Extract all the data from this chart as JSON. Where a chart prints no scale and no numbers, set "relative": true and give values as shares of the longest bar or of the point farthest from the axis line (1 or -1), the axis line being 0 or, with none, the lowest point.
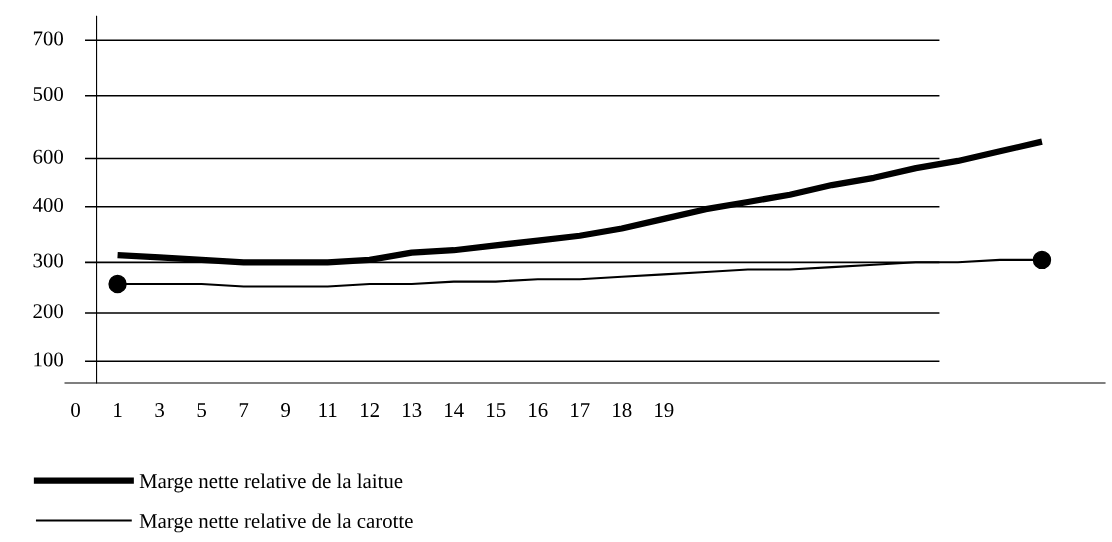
{
  "chart_data": {
    "type": "line",
    "relative": true,
    "categories": [
      "0",
      "1",
      "3",
      "5",
      "7",
      "9",
      "11",
      "12",
      "13",
      "14",
      "15",
      "16",
      "17",
      "18",
      "19",
      null,
      null,
      null,
      null,
      null,
      null,
      null,
      null,
      null
    ],
    "series": [
      {
        "name": "Marge nette relative de la laitue",
        "color": "#000000",
        "values": [
          null,
          0.53,
          0.52,
          0.51,
          0.5,
          0.5,
          0.5,
          0.51,
          0.54,
          0.55,
          0.57,
          0.59,
          0.61,
          0.64,
          0.68,
          0.72,
          0.75,
          0.78,
          0.82,
          0.85,
          0.89,
          0.92,
          0.96,
          1
        ]
      },
      {
        "name": "Marge nette relative de la carotte",
        "color": "#000000",
        "values": [
          null,
          0.41,
          0.41,
          0.41,
          0.4,
          0.4,
          0.4,
          0.41,
          0.41,
          0.42,
          0.42,
          0.43,
          0.43,
          0.44,
          0.45,
          0.46,
          0.47,
          0.47,
          0.48,
          0.49,
          0.5,
          0.5,
          0.51,
          0.51
        ]
      },
      {
        "type": "scatter",
        "color": "#000000",
        "marker": "circle",
        "values": [
          null,
          0.41,
          null,
          null,
          null,
          null,
          null,
          null,
          null,
          null,
          null,
          null,
          null,
          null,
          null,
          null,
          null,
          null,
          null,
          null,
          null,
          null,
          null,
          0.51
        ]
      }
    ],
    "ref_lines": [
      {
        "axis": "y",
        "value": 1.42,
        "color": "#000000"
      },
      {
        "axis": "y",
        "value": 1.19,
        "color": "#000000"
      },
      {
        "axis": "y",
        "value": 0.93,
        "color": "#000000"
      },
      {
        "axis": "y",
        "value": 0.73,
        "color": "#000000"
      },
      {
        "axis": "y",
        "value": 0.5,
        "color": "#000000"
      },
      {
        "axis": "y",
        "value": 0.29,
        "color": "#000000"
      },
      {
        "axis": "y",
        "value": 0.09,
        "color": "#000000"
      }
    ],
    "annotations": [
      "700",
      "500",
      "600",
      "400",
      "300",
      "200",
      "100"
    ],
    "legend": "bottom left"
  }
}
